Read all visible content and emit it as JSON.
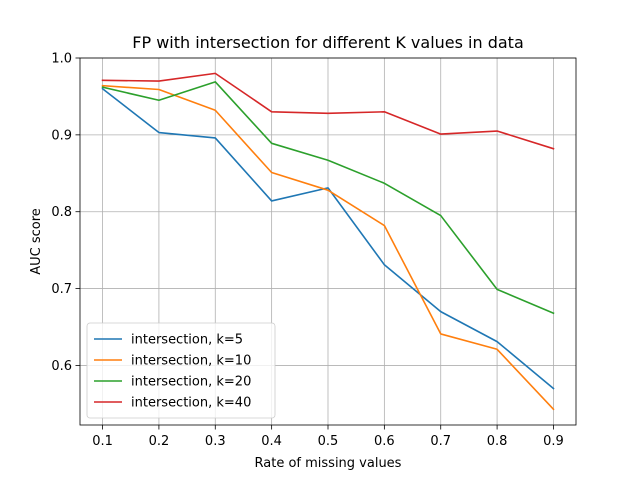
{
  "chart_data": {
    "type": "line",
    "title": "FP with intersection for different K values in data",
    "xlabel": "Rate of missing values",
    "ylabel": "AUC score",
    "x": [
      0.1,
      0.2,
      0.3,
      0.4,
      0.5,
      0.6,
      0.7,
      0.8,
      0.9
    ],
    "x_ticks": [
      "0.1",
      "0.2",
      "0.3",
      "0.4",
      "0.5",
      "0.6",
      "0.7",
      "0.8",
      "0.9"
    ],
    "y_ticks": [
      "0.6",
      "0.7",
      "0.8",
      "0.9",
      "1.0"
    ],
    "xlim": [
      0.06,
      0.94
    ],
    "ylim": [
      0.5225,
      1.0
    ],
    "grid": true,
    "legend_position": "lower-left",
    "series": [
      {
        "name": "intersection, k=5",
        "color": "#1f77b4",
        "values": [
          0.96,
          0.903,
          0.896,
          0.814,
          0.831,
          0.731,
          0.67,
          0.631,
          0.57
        ]
      },
      {
        "name": "intersection, k=10",
        "color": "#ff7f0e",
        "values": [
          0.964,
          0.959,
          0.932,
          0.851,
          0.828,
          0.782,
          0.641,
          0.621,
          0.543
        ]
      },
      {
        "name": "intersection, k=20",
        "color": "#2ca02c",
        "values": [
          0.962,
          0.945,
          0.969,
          0.889,
          0.867,
          0.837,
          0.795,
          0.699,
          0.668
        ]
      },
      {
        "name": "intersection, k=40",
        "color": "#d62728",
        "values": [
          0.971,
          0.97,
          0.98,
          0.93,
          0.928,
          0.93,
          0.901,
          0.905,
          0.882
        ]
      }
    ]
  }
}
